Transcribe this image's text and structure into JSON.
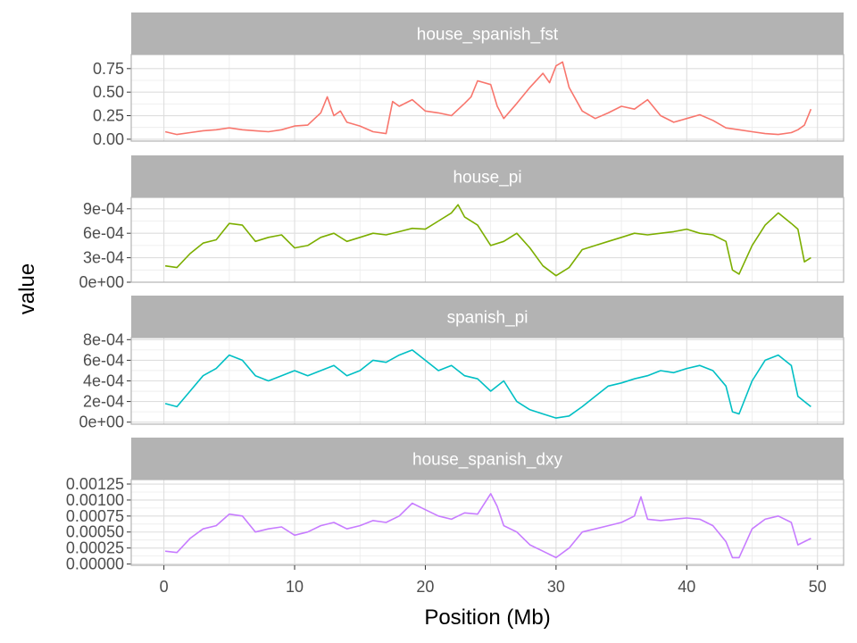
{
  "chart_data": {
    "type": "line",
    "layout": "facet_wrap, single column, free y scales",
    "xlabel": "Position (Mb)",
    "ylabel": "value",
    "xlim": [
      -2.5,
      52
    ],
    "x_ticks": [
      0,
      10,
      20,
      30,
      40,
      50
    ],
    "x_tick_labels": [
      "0",
      "10",
      "20",
      "30",
      "40",
      "50"
    ],
    "grid": true,
    "legend": "none",
    "panels": [
      {
        "strip": "house_spanish_fst",
        "color": "#F8766D",
        "ylim": [
          -0.02,
          0.9
        ],
        "y_ticks": [
          0,
          0.25,
          0.5,
          0.75
        ],
        "y_tick_labels": [
          "0.00",
          "0.25",
          "0.50",
          "0.75"
        ],
        "x": [
          0.1,
          1,
          2,
          3,
          4,
          5,
          6,
          7,
          8,
          9,
          10,
          11,
          12,
          12.5,
          13,
          13.5,
          14,
          15,
          16,
          17,
          17.5,
          18,
          19,
          20,
          21,
          22,
          23,
          23.5,
          24,
          25,
          25.5,
          26,
          27,
          28,
          29,
          29.5,
          30,
          30.5,
          31,
          32,
          33,
          34,
          35,
          36,
          37,
          38,
          39,
          40,
          41,
          42,
          43,
          44,
          45,
          46,
          47,
          48,
          48.5,
          49,
          49.5
        ],
        "y": [
          0.08,
          0.05,
          0.07,
          0.09,
          0.1,
          0.12,
          0.1,
          0.09,
          0.08,
          0.1,
          0.14,
          0.15,
          0.28,
          0.45,
          0.25,
          0.3,
          0.18,
          0.14,
          0.08,
          0.06,
          0.4,
          0.35,
          0.42,
          0.3,
          0.28,
          0.25,
          0.38,
          0.45,
          0.62,
          0.58,
          0.35,
          0.22,
          0.38,
          0.55,
          0.7,
          0.6,
          0.78,
          0.82,
          0.55,
          0.3,
          0.22,
          0.28,
          0.35,
          0.32,
          0.42,
          0.25,
          0.18,
          0.22,
          0.26,
          0.2,
          0.12,
          0.1,
          0.08,
          0.06,
          0.05,
          0.07,
          0.1,
          0.15,
          0.32
        ]
      },
      {
        "strip": "house_pi",
        "color": "#7CAE00",
        "ylim": [
          0,
          0.00104
        ],
        "y_ticks": [
          0,
          0.0003,
          0.0006,
          0.0009
        ],
        "y_tick_labels": [
          "0e+00",
          "3e-04",
          "6e-04",
          "9e-04"
        ],
        "x": [
          0.1,
          1,
          2,
          3,
          4,
          5,
          6,
          7,
          8,
          9,
          10,
          11,
          12,
          13,
          14,
          15,
          16,
          17,
          18,
          19,
          20,
          21,
          22,
          22.5,
          23,
          24,
          25,
          26,
          27,
          28,
          29,
          30,
          31,
          32,
          33,
          34,
          35,
          36,
          37,
          38,
          39,
          40,
          41,
          42,
          43,
          43.5,
          44,
          45,
          46,
          47,
          48,
          48.5,
          49,
          49.5
        ],
        "y": [
          0.0002,
          0.00018,
          0.00035,
          0.00048,
          0.00052,
          0.00072,
          0.0007,
          0.0005,
          0.00055,
          0.00058,
          0.00042,
          0.00045,
          0.00055,
          0.0006,
          0.0005,
          0.00055,
          0.0006,
          0.00058,
          0.00062,
          0.00066,
          0.00065,
          0.00075,
          0.00085,
          0.00095,
          0.0008,
          0.0007,
          0.00045,
          0.0005,
          0.0006,
          0.00042,
          0.0002,
          8e-05,
          0.00018,
          0.0004,
          0.00045,
          0.0005,
          0.00055,
          0.0006,
          0.00058,
          0.0006,
          0.00062,
          0.00065,
          0.0006,
          0.00058,
          0.0005,
          0.00015,
          0.0001,
          0.00045,
          0.0007,
          0.00085,
          0.00072,
          0.00065,
          0.00025,
          0.0003
        ]
      },
      {
        "strip": "spanish_pi",
        "color": "#00BFC4",
        "ylim": [
          -2e-05,
          0.00082
        ],
        "y_ticks": [
          0,
          0.0002,
          0.0004,
          0.0006,
          0.0008
        ],
        "y_tick_labels": [
          "0e+00",
          "2e-04",
          "4e-04",
          "6e-04",
          "8e-04"
        ],
        "x": [
          0.1,
          1,
          2,
          3,
          4,
          5,
          6,
          7,
          8,
          9,
          10,
          11,
          12,
          13,
          14,
          15,
          16,
          17,
          18,
          19,
          20,
          21,
          22,
          23,
          24,
          25,
          26,
          27,
          28,
          29,
          30,
          31,
          32,
          33,
          34,
          35,
          36,
          37,
          38,
          39,
          40,
          41,
          42,
          43,
          43.5,
          44,
          45,
          46,
          47,
          48,
          48.5,
          49,
          49.5
        ],
        "y": [
          0.00018,
          0.00015,
          0.0003,
          0.00045,
          0.00052,
          0.00065,
          0.0006,
          0.00045,
          0.0004,
          0.00045,
          0.0005,
          0.00045,
          0.0005,
          0.00055,
          0.00045,
          0.0005,
          0.0006,
          0.00058,
          0.00065,
          0.0007,
          0.0006,
          0.0005,
          0.00055,
          0.00045,
          0.00042,
          0.0003,
          0.0004,
          0.0002,
          0.00012,
          8e-05,
          4e-05,
          6e-05,
          0.00015,
          0.00025,
          0.00035,
          0.00038,
          0.00042,
          0.00045,
          0.0005,
          0.00048,
          0.00052,
          0.00055,
          0.0005,
          0.00035,
          0.0001,
          8e-05,
          0.0004,
          0.0006,
          0.00065,
          0.00055,
          0.00025,
          0.0002,
          0.00015
        ]
      },
      {
        "strip": "house_spanish_dxy",
        "color": "#C77CFF",
        "ylim": [
          -2e-05,
          0.00132
        ],
        "y_ticks": [
          0,
          0.00025,
          0.0005,
          0.00075,
          0.001,
          0.00125
        ],
        "y_tick_labels": [
          "0.00000",
          "0.00025",
          "0.00050",
          "0.00075",
          "0.00100",
          "0.00125"
        ],
        "x": [
          0.1,
          1,
          2,
          3,
          4,
          5,
          6,
          7,
          8,
          9,
          10,
          11,
          12,
          13,
          14,
          15,
          16,
          17,
          18,
          19,
          20,
          21,
          22,
          23,
          24,
          25,
          25.5,
          26,
          27,
          28,
          29,
          30,
          31,
          32,
          33,
          34,
          35,
          36,
          36.5,
          37,
          38,
          39,
          40,
          41,
          42,
          43,
          43.5,
          44,
          45,
          46,
          47,
          48,
          48.5,
          49,
          49.5
        ],
        "y": [
          0.0002,
          0.00018,
          0.0004,
          0.00055,
          0.0006,
          0.00078,
          0.00075,
          0.0005,
          0.00055,
          0.00058,
          0.00045,
          0.0005,
          0.0006,
          0.00065,
          0.00055,
          0.0006,
          0.00068,
          0.00065,
          0.00075,
          0.00095,
          0.00085,
          0.00075,
          0.0007,
          0.0008,
          0.00078,
          0.0011,
          0.0009,
          0.0006,
          0.0005,
          0.0003,
          0.0002,
          0.0001,
          0.00025,
          0.0005,
          0.00055,
          0.0006,
          0.00065,
          0.00075,
          0.00105,
          0.0007,
          0.00068,
          0.0007,
          0.00072,
          0.0007,
          0.0006,
          0.00035,
          0.0001,
          0.0001,
          0.00055,
          0.0007,
          0.00075,
          0.00065,
          0.0003,
          0.00035,
          0.0004
        ]
      }
    ]
  }
}
